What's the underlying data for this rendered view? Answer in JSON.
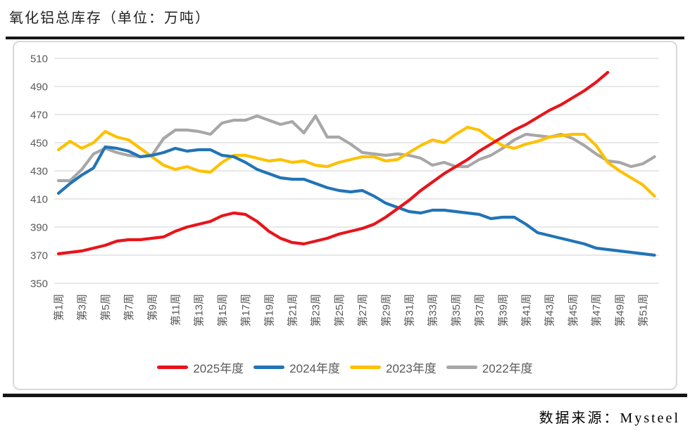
{
  "title": "氧化铝总库存（单位：万吨）",
  "source": "数据来源：Mysteel",
  "colors": {
    "series_2025": "#e8141b",
    "series_2024": "#2274b5",
    "series_2023": "#fdc101",
    "series_2022": "#a7a7a7",
    "gridline": "#d9d9d9",
    "axis_text": "#595959",
    "divider": "#151515"
  },
  "chart_data": {
    "type": "line",
    "title": "氧化铝总库存（单位：万吨）",
    "unit": "万吨",
    "xlabel": "",
    "ylabel": "",
    "ylim": [
      350,
      510
    ],
    "y_tick_step": 20,
    "y_tick_labels": [
      350,
      370,
      390,
      410,
      430,
      450,
      470,
      490,
      510
    ],
    "x_weeks_total": 52,
    "x_tick_labels": [
      "第1周",
      "第3周",
      "第5周",
      "第7周",
      "第9周",
      "第11周",
      "第13周",
      "第15周",
      "第17周",
      "第19周",
      "第21周",
      "第23周",
      "第25周",
      "第27周",
      "第29周",
      "第31周",
      "第33周",
      "第35周",
      "第37周",
      "第39周",
      "第41周",
      "第43周",
      "第45周",
      "第47周",
      "第49周",
      "第51周"
    ],
    "grid": true,
    "legend_position": "bottom",
    "series": [
      {
        "name": "2025年度",
        "color": "#e8141b",
        "start_week": 1,
        "values": [
          371,
          372,
          373,
          375,
          377,
          380,
          381,
          381,
          382,
          383,
          387,
          390,
          392,
          394,
          398,
          400,
          399,
          394,
          387,
          382,
          379,
          378,
          380,
          382,
          385,
          387,
          389,
          392,
          397,
          403,
          409,
          416,
          422,
          428,
          433,
          438,
          444,
          449,
          454,
          459,
          463,
          468,
          473,
          477,
          482,
          487,
          493,
          500
        ]
      },
      {
        "name": "2024年度",
        "color": "#2274b5",
        "start_week": 1,
        "values": [
          414,
          421,
          427,
          432,
          447,
          446,
          444,
          440,
          441,
          443,
          446,
          444,
          445,
          445,
          441,
          440,
          436,
          431,
          428,
          425,
          424,
          424,
          421,
          418,
          416,
          415,
          416,
          412,
          407,
          404,
          401,
          400,
          402,
          402,
          401,
          400,
          399,
          396,
          397,
          397,
          392,
          386,
          384,
          382,
          380,
          378,
          375,
          374,
          373,
          372,
          371,
          370
        ]
      },
      {
        "name": "2023年度",
        "color": "#fdc101",
        "start_week": 1,
        "values": [
          445,
          451,
          446,
          450,
          458,
          454,
          452,
          446,
          440,
          434,
          431,
          433,
          430,
          429,
          436,
          441,
          441,
          439,
          437,
          438,
          436,
          437,
          434,
          433,
          436,
          438,
          440,
          440,
          437,
          438,
          443,
          448,
          452,
          450,
          456,
          461,
          459,
          453,
          448,
          446,
          449,
          451,
          454,
          455,
          456,
          456,
          448,
          436,
          430,
          425,
          420,
          412
        ]
      },
      {
        "name": "2022年度",
        "color": "#a7a7a7",
        "start_week": 1,
        "values": [
          423,
          423,
          431,
          442,
          446,
          443,
          441,
          440,
          441,
          453,
          459,
          459,
          458,
          456,
          464,
          466,
          466,
          469,
          466,
          463,
          465,
          457,
          469,
          454,
          454,
          449,
          443,
          442,
          441,
          442,
          441,
          439,
          434,
          436,
          433,
          433,
          438,
          441,
          446,
          452,
          456,
          455,
          454,
          456,
          453,
          448,
          442,
          437,
          436,
          433,
          435,
          440
        ]
      }
    ]
  }
}
